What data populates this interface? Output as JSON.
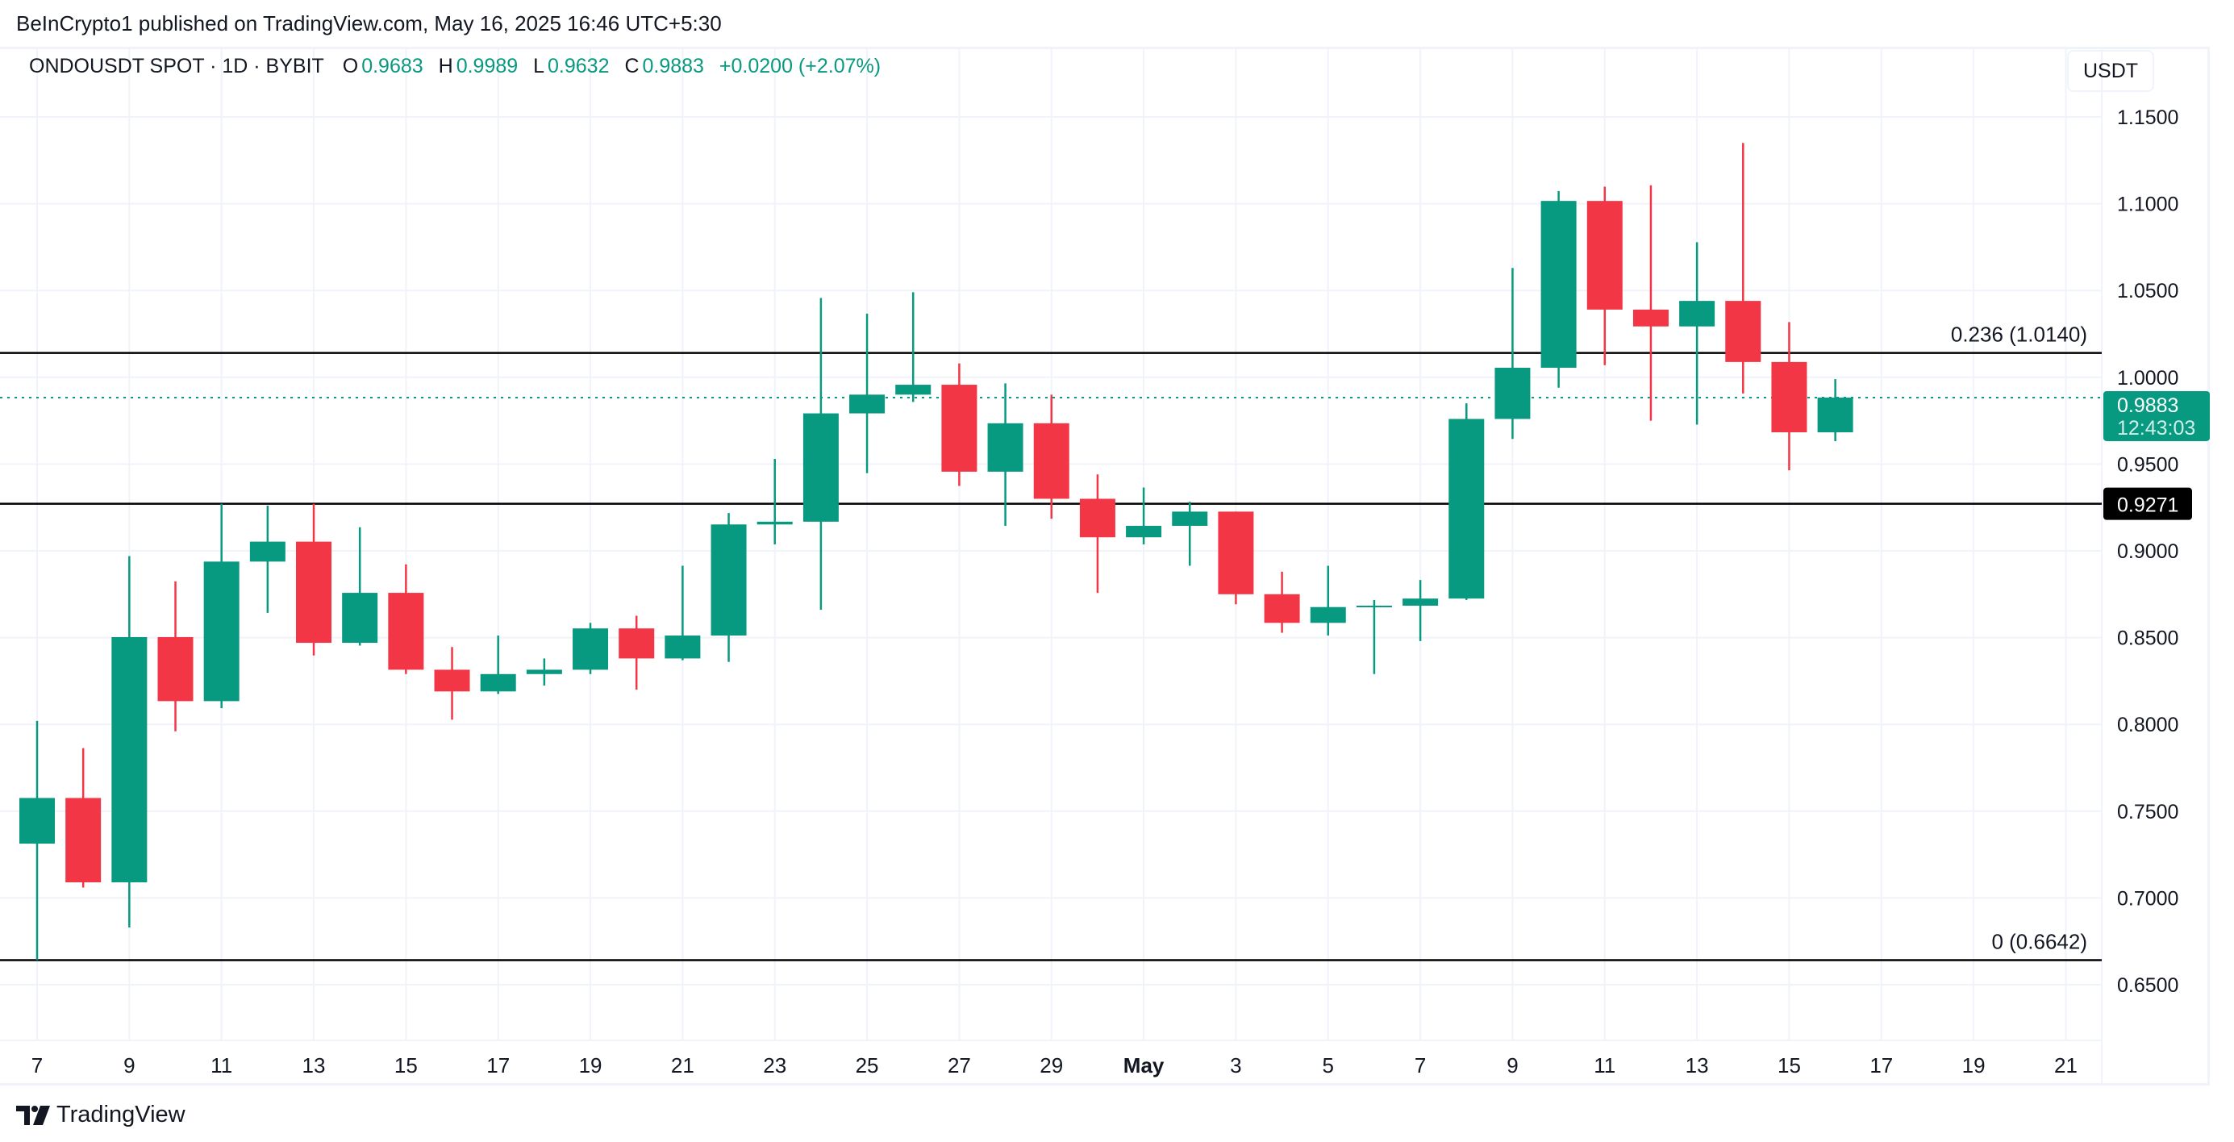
{
  "attribution": "BeInCrypto1 published on TradingView.com, May 16, 2025 16:46 UTC+5:30",
  "legend": {
    "symbol": "ONDOUSDT SPOT · 1D · BYBIT",
    "o_label": "O",
    "o": "0.9683",
    "h_label": "H",
    "h": "0.9989",
    "l_label": "L",
    "l": "0.9632",
    "c_label": "C",
    "c": "0.9883",
    "change": "+0.0200 (+2.07%)"
  },
  "currency_button": "USDT",
  "brand": "TradingView",
  "colors": {
    "up": "#089981",
    "down": "#f23645",
    "grid": "#f0f3fa",
    "text": "#131722"
  },
  "chart_data": {
    "type": "candlestick",
    "ylim": [
      0.63,
      1.17
    ],
    "y_ticks": [
      "1.1500",
      "1.1000",
      "1.0500",
      "1.0000",
      "0.9500",
      "0.9000",
      "0.8500",
      "0.8000",
      "0.7500",
      "0.7000",
      "0.6500"
    ],
    "x_tick_labels": [
      "7",
      "9",
      "11",
      "13",
      "15",
      "17",
      "19",
      "21",
      "23",
      "25",
      "27",
      "29",
      "May",
      "3",
      "5",
      "7",
      "9",
      "11",
      "13",
      "15",
      "17",
      "19",
      "21"
    ],
    "x_range": [
      "2025-04-07",
      "2025-05-21"
    ],
    "grid": true,
    "candles": [
      {
        "date": "2025-04-07",
        "o": 0.7313,
        "h": 0.802,
        "l": 0.6642,
        "c": 0.7576
      },
      {
        "date": "2025-04-08",
        "o": 0.7576,
        "h": 0.7863,
        "l": 0.706,
        "c": 0.709
      },
      {
        "date": "2025-04-09",
        "o": 0.709,
        "h": 0.897,
        "l": 0.683,
        "c": 0.8503
      },
      {
        "date": "2025-04-10",
        "o": 0.8503,
        "h": 0.8824,
        "l": 0.796,
        "c": 0.8134
      },
      {
        "date": "2025-04-11",
        "o": 0.8134,
        "h": 0.9271,
        "l": 0.8093,
        "c": 0.8938
      },
      {
        "date": "2025-04-12",
        "o": 0.8938,
        "h": 0.926,
        "l": 0.8643,
        "c": 0.9053
      },
      {
        "date": "2025-04-13",
        "o": 0.9053,
        "h": 0.9271,
        "l": 0.8397,
        "c": 0.847
      },
      {
        "date": "2025-04-14",
        "o": 0.847,
        "h": 0.9136,
        "l": 0.8454,
        "c": 0.8758
      },
      {
        "date": "2025-04-15",
        "o": 0.8758,
        "h": 0.8922,
        "l": 0.829,
        "c": 0.8315
      },
      {
        "date": "2025-04-16",
        "o": 0.8315,
        "h": 0.8446,
        "l": 0.8027,
        "c": 0.819
      },
      {
        "date": "2025-04-17",
        "o": 0.819,
        "h": 0.8512,
        "l": 0.8175,
        "c": 0.829
      },
      {
        "date": "2025-04-18",
        "o": 0.829,
        "h": 0.838,
        "l": 0.8224,
        "c": 0.8315
      },
      {
        "date": "2025-04-19",
        "o": 0.8315,
        "h": 0.8585,
        "l": 0.829,
        "c": 0.8553
      },
      {
        "date": "2025-04-20",
        "o": 0.8553,
        "h": 0.8626,
        "l": 0.82,
        "c": 0.838
      },
      {
        "date": "2025-04-21",
        "o": 0.838,
        "h": 0.8914,
        "l": 0.837,
        "c": 0.8512
      },
      {
        "date": "2025-04-22",
        "o": 0.8512,
        "h": 0.9218,
        "l": 0.836,
        "c": 0.9152
      },
      {
        "date": "2025-04-23",
        "o": 0.9152,
        "h": 0.953,
        "l": 0.9037,
        "c": 0.9168
      },
      {
        "date": "2025-04-24",
        "o": 0.9168,
        "h": 1.0457,
        "l": 0.866,
        "c": 0.9792
      },
      {
        "date": "2025-04-25",
        "o": 0.9792,
        "h": 1.0367,
        "l": 0.9448,
        "c": 0.99
      },
      {
        "date": "2025-04-26",
        "o": 0.99,
        "h": 1.049,
        "l": 0.9858,
        "c": 0.9957
      },
      {
        "date": "2025-04-27",
        "o": 0.9957,
        "h": 1.008,
        "l": 0.9374,
        "c": 0.9456
      },
      {
        "date": "2025-04-28",
        "o": 0.9456,
        "h": 0.9965,
        "l": 0.9144,
        "c": 0.9735
      },
      {
        "date": "2025-04-29",
        "o": 0.9735,
        "h": 0.99,
        "l": 0.9185,
        "c": 0.93
      },
      {
        "date": "2025-04-30",
        "o": 0.93,
        "h": 0.944,
        "l": 0.8758,
        "c": 0.9078
      },
      {
        "date": "2025-05-01",
        "o": 0.9078,
        "h": 0.9365,
        "l": 0.9037,
        "c": 0.9144
      },
      {
        "date": "2025-05-02",
        "o": 0.9144,
        "h": 0.9283,
        "l": 0.8914,
        "c": 0.9226
      },
      {
        "date": "2025-05-03",
        "o": 0.9226,
        "h": 0.9226,
        "l": 0.8692,
        "c": 0.875
      },
      {
        "date": "2025-05-04",
        "o": 0.875,
        "h": 0.888,
        "l": 0.8528,
        "c": 0.8585
      },
      {
        "date": "2025-05-05",
        "o": 0.8585,
        "h": 0.8914,
        "l": 0.8512,
        "c": 0.8676
      },
      {
        "date": "2025-05-06",
        "o": 0.8676,
        "h": 0.8717,
        "l": 0.829,
        "c": 0.8684
      },
      {
        "date": "2025-05-07",
        "o": 0.8684,
        "h": 0.8832,
        "l": 0.848,
        "c": 0.8725
      },
      {
        "date": "2025-05-08",
        "o": 0.8725,
        "h": 0.985,
        "l": 0.8717,
        "c": 0.976
      },
      {
        "date": "2025-05-09",
        "o": 0.976,
        "h": 1.063,
        "l": 0.9645,
        "c": 1.0055
      },
      {
        "date": "2025-05-10",
        "o": 1.0055,
        "h": 1.1073,
        "l": 0.994,
        "c": 1.1016
      },
      {
        "date": "2025-05-11",
        "o": 1.1016,
        "h": 1.1098,
        "l": 1.007,
        "c": 1.039
      },
      {
        "date": "2025-05-12",
        "o": 1.039,
        "h": 1.1106,
        "l": 0.975,
        "c": 1.0293
      },
      {
        "date": "2025-05-13",
        "o": 1.0293,
        "h": 1.0778,
        "l": 0.9727,
        "c": 1.044
      },
      {
        "date": "2025-05-14",
        "o": 1.044,
        "h": 1.135,
        "l": 0.9907,
        "c": 1.0088
      },
      {
        "date": "2025-05-15",
        "o": 1.0088,
        "h": 1.0318,
        "l": 0.9464,
        "c": 0.9683
      },
      {
        "date": "2025-05-16",
        "o": 0.9683,
        "h": 0.9989,
        "l": 0.9632,
        "c": 0.9883
      }
    ],
    "horizontal_lines": [
      {
        "value": 1.014,
        "label": "0.236 (1.0140)"
      },
      {
        "value": 0.9271,
        "axis_label": "0.9271"
      },
      {
        "value": 0.6642,
        "label": "0 (0.6642)"
      }
    ],
    "last_price": {
      "value": 0.9883,
      "label": "0.9883",
      "countdown": "12:43:03"
    }
  }
}
